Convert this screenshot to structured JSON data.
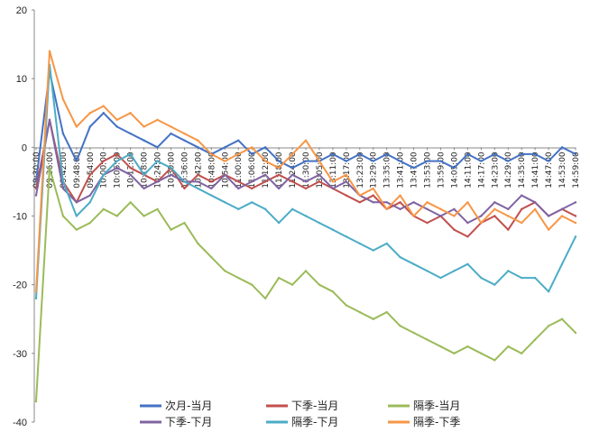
{
  "chart_data": {
    "type": "line",
    "title": "",
    "xlabel": "",
    "ylabel": "",
    "ylim": [
      -40,
      20
    ],
    "yticks": [
      20,
      10,
      0,
      -10,
      -20,
      -30,
      -40
    ],
    "grid": false,
    "legend_position": "bottom",
    "x": [
      "09:30:00",
      "09:36:00",
      "09:42:00",
      "09:48:00",
      "09:54:00",
      "10:00:00",
      "10:06:00",
      "10:12:00",
      "10:18:00",
      "10:24:00",
      "10:30:00",
      "10:36:00",
      "10:42:00",
      "10:48:00",
      "10:54:00",
      "11:00:00",
      "11:06:00",
      "11:12:00",
      "11:18:00",
      "11:24:00",
      "11:30:00",
      "13:05:00",
      "13:11:00",
      "13:17:00",
      "13:23:00",
      "13:29:00",
      "13:35:00",
      "13:41:00",
      "13:47:00",
      "13:53:00",
      "13:59:00",
      "14:05:00",
      "14:11:00",
      "14:17:00",
      "14:23:00",
      "14:29:00",
      "14:35:00",
      "14:41:00",
      "14:47:00",
      "14:53:00",
      "14:59:00"
    ],
    "series": [
      {
        "name": "次月-当月",
        "color": "#4472C4",
        "values": [
          -5,
          11,
          2,
          -2,
          3,
          5,
          3,
          2,
          1,
          0,
          2,
          1,
          0,
          -1,
          0,
          1,
          -1,
          0,
          -2,
          -3,
          -2,
          -2,
          -1,
          -2,
          -1,
          -2,
          -1,
          -2,
          -3,
          -2,
          -2,
          -3,
          -1,
          -2,
          -1,
          -2,
          -1,
          -1,
          -2,
          0,
          -1
        ]
      },
      {
        "name": "下季-当月",
        "color": "#C0504D",
        "values": [
          -6,
          4,
          -5,
          -8,
          -4,
          -2,
          -1,
          -3,
          -4,
          -5,
          -3,
          -6,
          -4,
          -5,
          -4,
          -5,
          -6,
          -5,
          -4,
          -5,
          -6,
          -5,
          -6,
          -7,
          -8,
          -7,
          -9,
          -8,
          -10,
          -11,
          -10,
          -12,
          -13,
          -11,
          -10,
          -12,
          -9,
          -8,
          -10,
          -9,
          -10
        ]
      },
      {
        "name": "隔季-当月",
        "color": "#9BBB59",
        "values": [
          -37,
          -3,
          -10,
          -12,
          -11,
          -9,
          -10,
          -8,
          -10,
          -9,
          -12,
          -11,
          -14,
          -16,
          -18,
          -19,
          -20,
          -22,
          -19,
          -20,
          -18,
          -20,
          -21,
          -23,
          -24,
          -25,
          -24,
          -26,
          -27,
          -28,
          -29,
          -30,
          -29,
          -30,
          -31,
          -29,
          -30,
          -28,
          -26,
          -25,
          -27
        ]
      },
      {
        "name": "下季-下月",
        "color": "#8064A2",
        "values": [
          -7,
          4,
          -6,
          -8,
          -7,
          -4,
          -3,
          -4,
          -6,
          -5,
          -4,
          -5,
          -5,
          -6,
          -4,
          -6,
          -5,
          -4,
          -6,
          -4,
          -5,
          -4,
          -6,
          -5,
          -7,
          -8,
          -8,
          -9,
          -8,
          -9,
          -10,
          -9,
          -11,
          -10,
          -8,
          -9,
          -7,
          -8,
          -10,
          -9,
          -8
        ]
      },
      {
        "name": "隔季-下月",
        "color": "#4BACC6",
        "values": [
          -22,
          12,
          -5,
          -10,
          -8,
          -4,
          -2,
          -1,
          -4,
          -2,
          -3,
          -5,
          -6,
          -7,
          -8,
          -9,
          -8,
          -9,
          -11,
          -9,
          -10,
          -11,
          -12,
          -13,
          -14,
          -15,
          -14,
          -16,
          -17,
          -18,
          -19,
          -18,
          -17,
          -19,
          -20,
          -18,
          -19,
          -19,
          -21,
          -17,
          -13
        ]
      },
      {
        "name": "隔季-下季",
        "color": "#F79646",
        "values": [
          -21,
          14,
          7,
          3,
          5,
          6,
          4,
          5,
          3,
          4,
          3,
          2,
          1,
          -1,
          -2,
          -1,
          0,
          -2,
          -3,
          -1,
          1,
          -2,
          -5,
          -4,
          -7,
          -6,
          -9,
          -7,
          -10,
          -8,
          -9,
          -10,
          -8,
          -11,
          -9,
          -10,
          -11,
          -9,
          -12,
          -10,
          -11
        ]
      }
    ]
  }
}
